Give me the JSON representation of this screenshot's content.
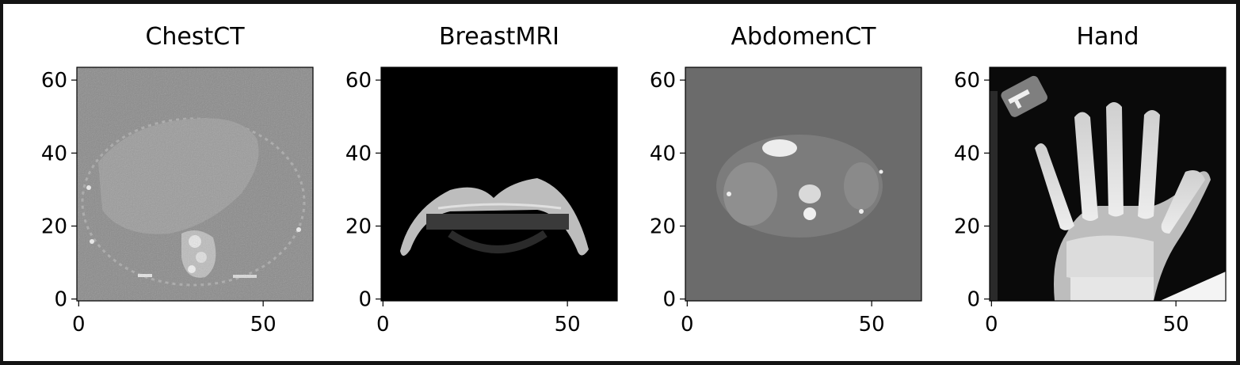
{
  "chart_data": [
    {
      "type": "heatmap",
      "title": "ChestCT",
      "image": "grayscale axial chest CT slice",
      "background_color": "#8a8a8a",
      "x_ticks": [
        0,
        50
      ],
      "y_ticks": [
        0,
        20,
        40,
        60
      ],
      "xlim": [
        -0.5,
        63.5
      ],
      "ylim": [
        63.5,
        -0.5
      ]
    },
    {
      "type": "heatmap",
      "title": "BreastMRI",
      "image": "grayscale axial breast MRI slice",
      "background_color": "#000000",
      "x_ticks": [
        0,
        50
      ],
      "y_ticks": [
        0,
        20,
        40,
        60
      ],
      "xlim": [
        -0.5,
        63.5
      ],
      "ylim": [
        63.5,
        -0.5
      ]
    },
    {
      "type": "heatmap",
      "title": "AbdomenCT",
      "image": "grayscale axial abdomen CT slice",
      "background_color": "#6b6b6b",
      "x_ticks": [
        0,
        50
      ],
      "y_ticks": [
        0,
        20,
        40,
        60
      ],
      "xlim": [
        -0.5,
        63.5
      ],
      "ylim": [
        63.5,
        -0.5
      ]
    },
    {
      "type": "heatmap",
      "title": "Hand",
      "image": "grayscale hand X-ray",
      "background_color": "#0a0a0a",
      "x_ticks": [
        0,
        50
      ],
      "y_ticks": [
        0,
        20,
        40,
        60
      ],
      "xlim": [
        -0.5,
        63.5
      ],
      "ylim": [
        63.5,
        -0.5
      ]
    }
  ]
}
